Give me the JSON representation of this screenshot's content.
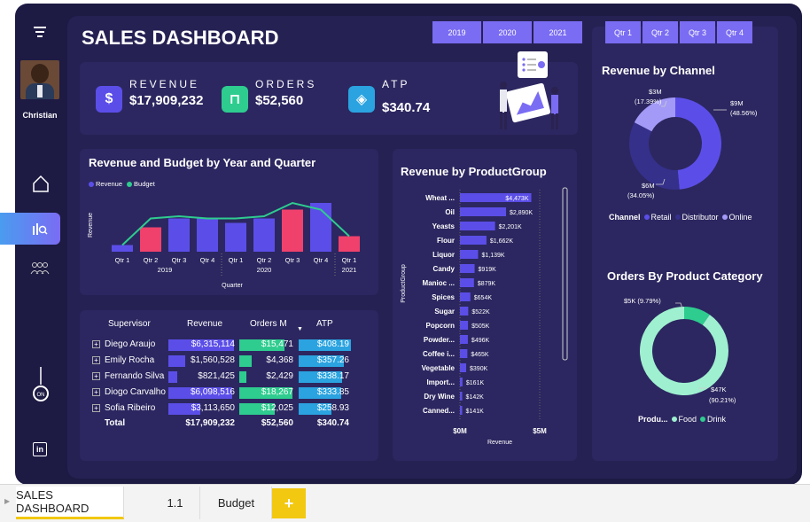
{
  "app": {
    "title": "SALES DASHBOARD",
    "user": "Christian"
  },
  "filters": {
    "years": [
      "2019",
      "2020",
      "2021"
    ],
    "quarters": [
      "Qtr 1",
      "Qtr 2",
      "Qtr 3",
      "Qtr 4"
    ]
  },
  "kpis": [
    {
      "label": "REVENUE",
      "value": "$17,909,232",
      "icon": "dollar-icon",
      "color": "#5b4ee8"
    },
    {
      "label": "ORDERS",
      "value": "$52,560",
      "icon": "cart-icon",
      "color": "#2ecc8f"
    },
    {
      "label": "ATP",
      "value": "$340.74",
      "icon": "tag-icon",
      "color": "#2aa3e0"
    }
  ],
  "colors": {
    "accent": "#7a6cf3",
    "revenue": "#5b4ee8",
    "budget": "#2ecc8f",
    "highlight": "#f0416c",
    "atp": "#2aa3e0"
  },
  "chart_data": [
    {
      "type": "bar",
      "title": "Revenue and Budget by Year and Quarter",
      "legend": [
        "Revenue",
        "Budget"
      ],
      "xlabel": "Quarter",
      "ylabel": "Revenue",
      "categories": [
        "Qtr 1",
        "Qtr 2",
        "Qtr 3",
        "Qtr 4",
        "Qtr 1",
        "Qtr 2",
        "Qtr 3",
        "Qtr 4",
        "Qtr 1"
      ],
      "year_labels": [
        "2019",
        "2020",
        "2021"
      ],
      "series": [
        {
          "name": "Revenue",
          "values": [
            0.3,
            1.1,
            1.5,
            1.5,
            1.3,
            1.5,
            1.9,
            2.2,
            0.7
          ]
        },
        {
          "name": "Budget",
          "values": [
            0.3,
            1.5,
            1.6,
            1.5,
            1.5,
            1.6,
            2.2,
            1.9,
            0.7
          ]
        }
      ],
      "below_budget": [
        false,
        true,
        false,
        false,
        false,
        false,
        true,
        false,
        true
      ]
    },
    {
      "type": "bar",
      "title": "Revenue by ProductGroup",
      "xlabel": "Revenue",
      "ylabel": "ProductGroup",
      "x_ticks": [
        "$0M",
        "$5M"
      ],
      "categories": [
        "Wheat ...",
        "Oil",
        "Yeasts",
        "Flour",
        "Liquor",
        "Candy",
        "Manioc ...",
        "Spices",
        "Sugar",
        "Popcorn",
        "Powder...",
        "Coffee i...",
        "Vegetable",
        "Import...",
        "Dry Wine",
        "Canned..."
      ],
      "values": [
        4473,
        2890,
        2201,
        1662,
        1139,
        919,
        879,
        654,
        522,
        505,
        496,
        465,
        390,
        161,
        142,
        141
      ],
      "labels": [
        "$4,473K",
        "$2,890K",
        "$2,201K",
        "$1,662K",
        "$1,139K",
        "$919K",
        "$879K",
        "$654K",
        "$522K",
        "$505K",
        "$496K",
        "$465K",
        "$390K",
        "$161K",
        "$142K",
        "$141K"
      ]
    },
    {
      "type": "pie",
      "title": "Revenue by Channel",
      "legend_title": "Channel",
      "categories": [
        "Retail",
        "Distributor",
        "Online"
      ],
      "values": [
        48.56,
        34.05,
        17.39
      ],
      "labels": [
        "$9M (48.56%)",
        "$6M (34.05%)",
        "$3M (17.39%)"
      ],
      "colors": [
        "#5b4ee8",
        "#35308a",
        "#a39af7"
      ]
    },
    {
      "type": "pie",
      "title": "Orders By Product Category",
      "legend_title": "Produ...",
      "categories": [
        "Food",
        "Drink"
      ],
      "values": [
        90.21,
        9.79
      ],
      "labels": [
        "$47K (90.21%)",
        "$5K (9.79%)"
      ],
      "colors": [
        "#9ff0d0",
        "#2ecc8f"
      ]
    }
  ],
  "table": {
    "headers": [
      "Supervisor",
      "Revenue",
      "Orders M",
      "ATP"
    ],
    "rows": [
      {
        "name": "Diego Araujo",
        "revenue": "$6,315,114",
        "orders": "$15,471",
        "atp": "$408.19",
        "rev_pct": 1.0,
        "ord_pct": 0.85,
        "atp_pct": 1.0
      },
      {
        "name": "Emily Rocha",
        "revenue": "$1,560,528",
        "orders": "$4,368",
        "atp": "$357.26",
        "rev_pct": 0.25,
        "ord_pct": 0.24,
        "atp_pct": 0.87
      },
      {
        "name": "Fernando Silva",
        "revenue": "$821,425",
        "orders": "$2,429",
        "atp": "$338.17",
        "rev_pct": 0.13,
        "ord_pct": 0.13,
        "atp_pct": 0.83
      },
      {
        "name": "Diogo Carvalho",
        "revenue": "$6,098,516",
        "orders": "$18,267",
        "atp": "$333.85",
        "rev_pct": 0.97,
        "ord_pct": 1.0,
        "atp_pct": 0.82
      },
      {
        "name": "Sofia Ribeiro",
        "revenue": "$3,113,650",
        "orders": "$12,025",
        "atp": "$258.93",
        "rev_pct": 0.49,
        "ord_pct": 0.66,
        "atp_pct": 0.63
      }
    ],
    "total": {
      "name": "Total",
      "revenue": "$17,909,232",
      "orders": "$52,560",
      "atp": "$340.74"
    }
  },
  "tabs": [
    {
      "label": "SALES DASHBOARD",
      "active": true
    },
    {
      "label": "1.1",
      "active": false
    },
    {
      "label": "Budget",
      "active": false
    }
  ],
  "add_tab_label": "+"
}
